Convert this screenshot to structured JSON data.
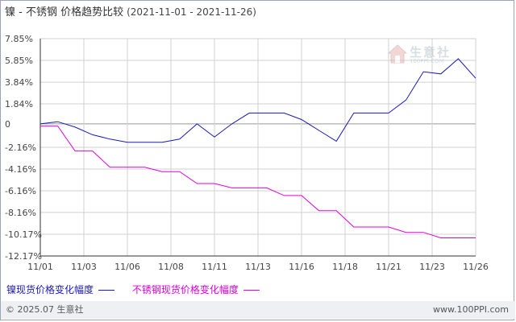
{
  "header": {
    "title": "镍 - 不锈钢 价格趋势比较",
    "date_range": "(2021-11-01 - 2021-11-26)"
  },
  "watermark": {
    "logo_text": "生意社",
    "sub_text": "100PPI.COM"
  },
  "legend": {
    "series1": "镍现货价格变化幅度",
    "series2": "不锈钢现货价格变化幅度"
  },
  "footer": {
    "copyright": "© 2025.07 生意社",
    "site": "www.100PPI.com"
  },
  "colors": {
    "series1": "#1a1ab8",
    "series2": "#e000e0",
    "grid": "#d0d0d0",
    "axis": "#333333"
  },
  "chart_data": {
    "type": "line",
    "title": "镍 - 不锈钢 价格趋势比较",
    "ylim": [
      -12.17,
      7.85
    ],
    "yticks": [
      {
        "v": 7.85,
        "label": "7.85%"
      },
      {
        "v": 5.85,
        "label": "5.85%"
      },
      {
        "v": 3.84,
        "label": "3.84%"
      },
      {
        "v": 1.84,
        "label": "1.84%"
      },
      {
        "v": 0,
        "label": "0"
      },
      {
        "v": -2.16,
        "label": "-2.16%"
      },
      {
        "v": -4.16,
        "label": "-4.16%"
      },
      {
        "v": -6.16,
        "label": "-6.16%"
      },
      {
        "v": -8.16,
        "label": "-8.16%"
      },
      {
        "v": -10.17,
        "label": "-10.17%"
      },
      {
        "v": -12.17,
        "label": "-12.17%"
      }
    ],
    "xlim": [
      1,
      26
    ],
    "xticks": [
      {
        "v": 1,
        "label": "11/01"
      },
      {
        "v": 3.5,
        "label": "11/03"
      },
      {
        "v": 6,
        "label": "11/06"
      },
      {
        "v": 8.5,
        "label": "11/08"
      },
      {
        "v": 11,
        "label": "11/11"
      },
      {
        "v": 13.5,
        "label": "11/13"
      },
      {
        "v": 16,
        "label": "11/16"
      },
      {
        "v": 18.5,
        "label": "11/18"
      },
      {
        "v": 21,
        "label": "11/21"
      },
      {
        "v": 23.5,
        "label": "11/23"
      },
      {
        "v": 26,
        "label": "11/26"
      }
    ],
    "grid": true,
    "series": [
      {
        "name": "镍现货价格变化幅度",
        "color": "#1a1ab8",
        "x": [
          1,
          2,
          3,
          4,
          5,
          6,
          7,
          8,
          9,
          10,
          11,
          12,
          13,
          14,
          15,
          16,
          17,
          18,
          19,
          20,
          21,
          22,
          23,
          24,
          25,
          26
        ],
        "y": [
          0,
          0.2,
          -0.3,
          -1.0,
          -1.4,
          -1.7,
          -1.7,
          -1.7,
          -1.4,
          0,
          -1.2,
          0,
          1.0,
          1.0,
          1.0,
          0.4,
          -0.6,
          -1.6,
          1.0,
          1.0,
          1.0,
          2.2,
          4.8,
          4.6,
          6.0,
          4.2
        ]
      },
      {
        "name": "不锈钢现货价格变化幅度",
        "color": "#e000e0",
        "x": [
          1,
          2,
          3,
          4,
          5,
          6,
          7,
          8,
          9,
          10,
          11,
          12,
          13,
          14,
          15,
          16,
          17,
          18,
          19,
          20,
          21,
          22,
          23,
          24,
          25,
          26
        ],
        "y": [
          -0.2,
          -0.2,
          -2.5,
          -2.5,
          -4.0,
          -4.0,
          -4.0,
          -4.4,
          -4.4,
          -5.5,
          -5.5,
          -5.9,
          -5.9,
          -5.9,
          -6.6,
          -6.6,
          -8.0,
          -8.0,
          -9.5,
          -9.5,
          -9.5,
          -10.0,
          -10.0,
          -10.5,
          -10.5,
          -10.5
        ]
      }
    ]
  }
}
